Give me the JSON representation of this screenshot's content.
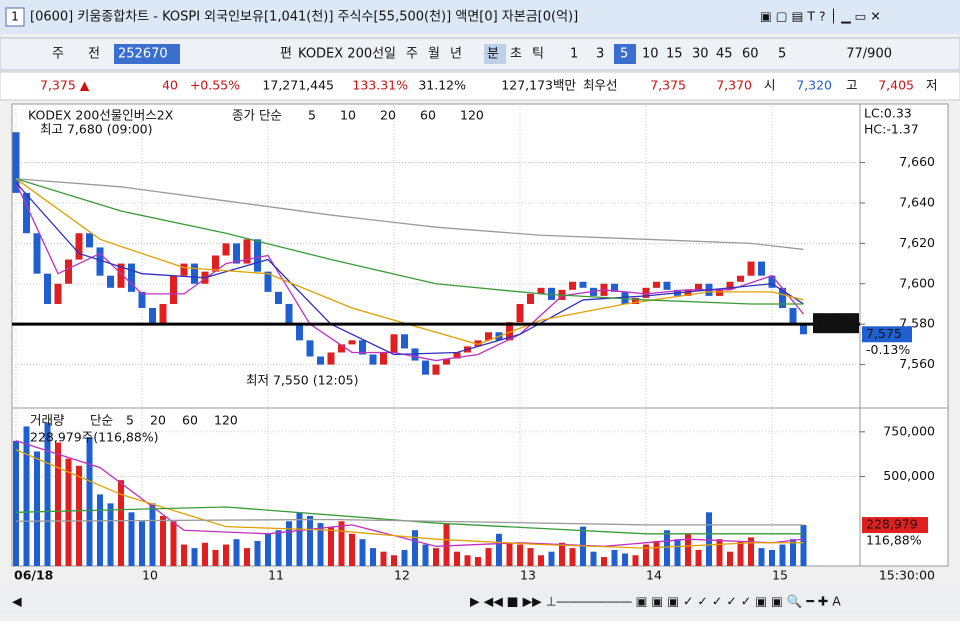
{
  "window": {
    "number": "1",
    "title": "[0600] 키움종합차트 - KOSPI 외국인보유[1,041(천)] 주식수[55,500(천)] 액면[0] 자본금[0(억)]"
  },
  "toolbar": {
    "items": [
      "주",
      "전",
      "252670",
      "편",
      "KODEX 200선",
      "일",
      "주",
      "월",
      "년",
      "분",
      "초",
      "틱",
      "1",
      "3",
      "5",
      "10",
      "15",
      "30",
      "45",
      "60",
      "5",
      "77/900"
    ]
  },
  "quote": {
    "items": [
      "7,375 ▲",
      "40",
      "+0.55%",
      "17,271,445",
      "133.31%",
      "31.12%",
      "127,173백만",
      "최우선",
      "7,375",
      "7,370",
      "시",
      "7,320",
      "고",
      "7,405",
      "저"
    ]
  },
  "chart_data": [
    {
      "type": "candlestick",
      "title": "KODEX 200선물인버스2X",
      "ma_label": "종가 단순",
      "lc": "LC:0.33",
      "hc": "HC:-1.37",
      "high_note": "최고 7,680 (09:00)",
      "low_note": "최저 7,550 (12:05)",
      "reference": {
        "value": 7580,
        "label": "7,580"
      },
      "current": {
        "value": 7575,
        "label": "7,575"
      },
      "change": "-0.13%",
      "ylim": [
        7540,
        7687
      ],
      "yticks": [
        {
          "value": 7560,
          "label": "7,560"
        },
        {
          "value": 7580,
          "label": "7,580"
        },
        {
          "value": 7600,
          "label": "7,600"
        },
        {
          "value": 7620,
          "label": "7,620"
        },
        {
          "value": 7640,
          "label": "7,640"
        },
        {
          "value": 7660,
          "label": "7,660"
        }
      ],
      "xticks": [
        {
          "value": 0,
          "label": "06/18"
        },
        {
          "value": 12,
          "label": "10"
        },
        {
          "value": 24,
          "label": "11"
        },
        {
          "value": 36,
          "label": "12"
        },
        {
          "value": 48,
          "label": "13"
        },
        {
          "value": 60,
          "label": "14"
        },
        {
          "value": 72,
          "label": "15"
        }
      ],
      "end_time": "15:30:00",
      "open": [
        7675,
        7645,
        7625,
        7605,
        7590,
        7600,
        7612,
        7625,
        7618,
        7604,
        7598,
        7610,
        7596,
        7588,
        7580,
        7590,
        7604,
        7610,
        7600,
        7606,
        7614,
        7620,
        7610,
        7622,
        7606,
        7596,
        7590,
        7580,
        7572,
        7564,
        7560,
        7566,
        7570,
        7572,
        7565,
        7560,
        7566,
        7575,
        7568,
        7562,
        7555,
        7560,
        7563,
        7566,
        7569,
        7572,
        7576,
        7572,
        7581,
        7590,
        7595,
        7598,
        7592,
        7597,
        7601,
        7598,
        7594,
        7600,
        7596,
        7590,
        7593,
        7598,
        7601,
        7597,
        7594,
        7597,
        7600,
        7594,
        7597,
        7601,
        7604,
        7611,
        7604,
        7598,
        7588,
        7580
      ],
      "close": [
        7645,
        7625,
        7605,
        7590,
        7600,
        7612,
        7625,
        7618,
        7604,
        7598,
        7610,
        7596,
        7588,
        7580,
        7590,
        7604,
        7610,
        7600,
        7606,
        7614,
        7620,
        7610,
        7622,
        7606,
        7596,
        7590,
        7580,
        7572,
        7564,
        7560,
        7566,
        7570,
        7572,
        7565,
        7560,
        7566,
        7575,
        7568,
        7562,
        7555,
        7560,
        7563,
        7566,
        7569,
        7572,
        7576,
        7572,
        7581,
        7590,
        7595,
        7598,
        7592,
        7597,
        7601,
        7598,
        7594,
        7600,
        7596,
        7590,
        7593,
        7598,
        7601,
        7597,
        7594,
        7597,
        7600,
        7594,
        7597,
        7601,
        7604,
        7611,
        7604,
        7598,
        7588,
        7580,
        7575
      ],
      "up_color": "#e02020",
      "down_color": "#1f5fd0",
      "series": [
        {
          "name": "5",
          "color": "#c030c0",
          "x": [
            0,
            4,
            8,
            12,
            16,
            20,
            24,
            28,
            32,
            36,
            40,
            44,
            48,
            52,
            56,
            60,
            64,
            68,
            72,
            75
          ],
          "values": [
            7650,
            7605,
            7615,
            7595,
            7595,
            7610,
            7614,
            7580,
            7566,
            7566,
            7562,
            7565,
            7575,
            7594,
            7597,
            7595,
            7597,
            7597,
            7604,
            7585
          ]
        },
        {
          "name": "10",
          "color": "#3030c0",
          "x": [
            0,
            6,
            12,
            18,
            24,
            30,
            36,
            42,
            48,
            54,
            60,
            66,
            72,
            75
          ],
          "values": [
            7650,
            7615,
            7605,
            7603,
            7612,
            7580,
            7565,
            7566,
            7575,
            7592,
            7594,
            7597,
            7600,
            7590
          ]
        },
        {
          "name": "20",
          "color": "#e0a000",
          "x": [
            0,
            8,
            16,
            24,
            32,
            40,
            44,
            50,
            58,
            66,
            72,
            75
          ],
          "values": [
            7652,
            7622,
            7608,
            7605,
            7588,
            7576,
            7570,
            7582,
            7590,
            7596,
            7596,
            7592
          ]
        },
        {
          "name": "60",
          "color": "#3a9a3a",
          "x": [
            0,
            10,
            20,
            30,
            40,
            50,
            60,
            70,
            75
          ],
          "values": [
            7652,
            7636,
            7625,
            7612,
            7600,
            7595,
            7592,
            7590,
            7590
          ]
        },
        {
          "name": "120",
          "color": "#9a9a9a",
          "x": [
            0,
            10,
            20,
            30,
            40,
            50,
            60,
            70,
            75
          ],
          "values": [
            7652,
            7648,
            7641,
            7634,
            7628,
            7624,
            7622,
            7620,
            7617
          ]
        }
      ]
    },
    {
      "type": "bar",
      "title": "거래량",
      "ma_label": "단순",
      "summary": "228,979주(116,88%)",
      "current": {
        "value": 228979,
        "label": "228,979"
      },
      "ratio": "116,88%",
      "ylim": [
        0,
        872000
      ],
      "yticks": [
        {
          "value": 500000,
          "label": "500,000"
        },
        {
          "value": 750000,
          "label": "750,000"
        }
      ],
      "values": [
        700000,
        780000,
        640000,
        800000,
        690000,
        600000,
        560000,
        720000,
        400000,
        350000,
        480000,
        300000,
        250000,
        350000,
        280000,
        250000,
        120000,
        100000,
        130000,
        90000,
        120000,
        150000,
        100000,
        140000,
        180000,
        200000,
        250000,
        300000,
        280000,
        240000,
        220000,
        250000,
        180000,
        150000,
        100000,
        80000,
        60000,
        90000,
        200000,
        120000,
        100000,
        240000,
        80000,
        60000,
        50000,
        100000,
        180000,
        130000,
        120000,
        100000,
        60000,
        80000,
        130000,
        100000,
        220000,
        80000,
        50000,
        90000,
        70000,
        60000,
        120000,
        140000,
        200000,
        150000,
        180000,
        90000,
        300000,
        150000,
        80000,
        140000,
        160000,
        100000,
        90000,
        120000,
        150000,
        228979
      ],
      "series": [
        {
          "name": "5",
          "color": "#c030c0",
          "x": [
            0,
            8,
            16,
            24,
            32,
            40,
            48,
            56,
            64,
            72,
            75
          ],
          "values": [
            700000,
            550000,
            200000,
            180000,
            230000,
            110000,
            130000,
            110000,
            150000,
            130000,
            150000
          ]
        },
        {
          "name": "20",
          "color": "#e0a000",
          "x": [
            0,
            10,
            20,
            30,
            40,
            50,
            60,
            70,
            75
          ],
          "values": [
            650000,
            400000,
            220000,
            200000,
            150000,
            120000,
            100000,
            130000,
            130000
          ]
        },
        {
          "name": "60",
          "color": "#3a9a3a",
          "x": [
            0,
            20,
            40,
            60,
            75
          ],
          "values": [
            300000,
            330000,
            240000,
            180000,
            180000
          ]
        },
        {
          "name": "120",
          "color": "#9a9a9a",
          "x": [
            0,
            30,
            60,
            75
          ],
          "values": [
            250000,
            260000,
            230000,
            230000
          ]
        }
      ]
    }
  ]
}
